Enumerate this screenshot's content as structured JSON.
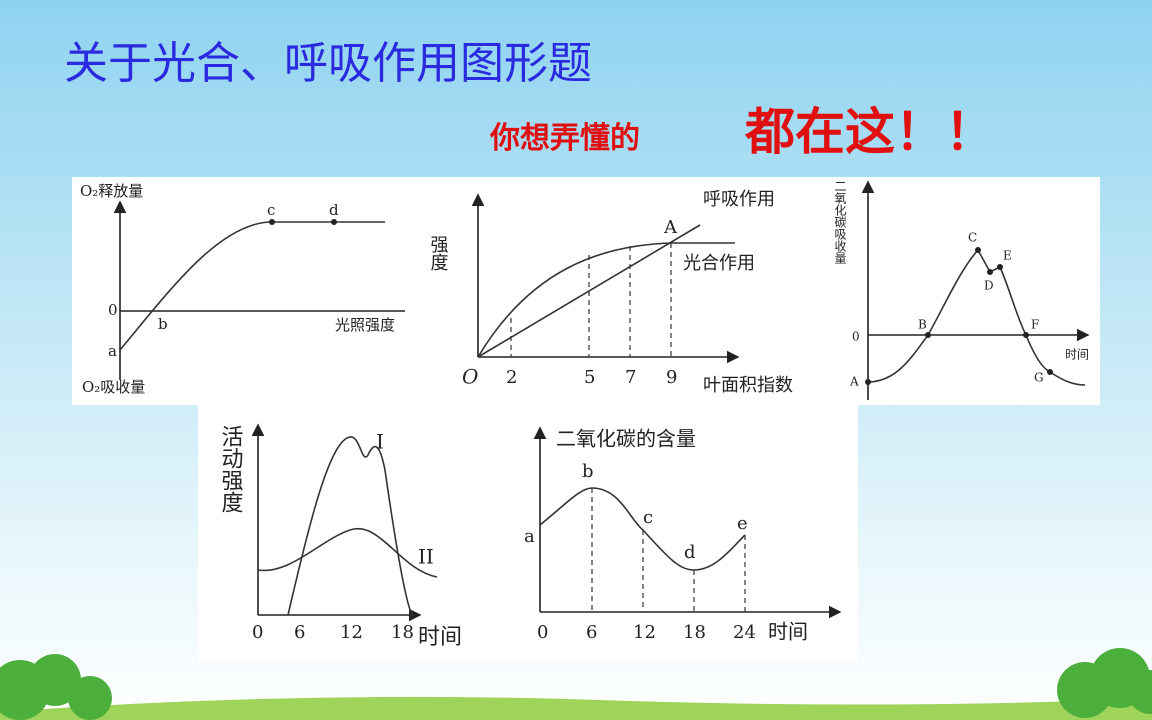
{
  "header": {
    "title": "关于光合、呼吸作用图形题",
    "subtitle_small": "你想弄懂的",
    "subtitle_big": "都在这！！"
  },
  "panels": [
    {
      "y_label": "O₂释放量",
      "y_label_neg": "O₂吸收量",
      "x_label": "光照强度",
      "zero": "0",
      "points": [
        "a",
        "b",
        "c",
        "d"
      ]
    },
    {
      "y_label": "强度",
      "x_label": "叶面积指数",
      "origin": "O",
      "ticks": [
        "2",
        "5",
        "7",
        "9"
      ],
      "curves": [
        "呼吸作用",
        "光合作用"
      ],
      "point": "A"
    },
    {
      "y_label": "二氧化碳吸收量",
      "x_label": "时间",
      "zero": "0",
      "points": [
        "A",
        "B",
        "C",
        "D",
        "E",
        "F",
        "G"
      ]
    },
    {
      "y_label": "活动强度",
      "x_label": "时间",
      "ticks": [
        "0",
        "6",
        "12",
        "18"
      ],
      "curves": [
        "I",
        "II"
      ]
    },
    {
      "y_label": "二氧化碳的含量",
      "x_label": "时间",
      "ticks": [
        "0",
        "6",
        "12",
        "18",
        "24"
      ],
      "points": [
        "a",
        "b",
        "c",
        "d",
        "e"
      ]
    }
  ]
}
